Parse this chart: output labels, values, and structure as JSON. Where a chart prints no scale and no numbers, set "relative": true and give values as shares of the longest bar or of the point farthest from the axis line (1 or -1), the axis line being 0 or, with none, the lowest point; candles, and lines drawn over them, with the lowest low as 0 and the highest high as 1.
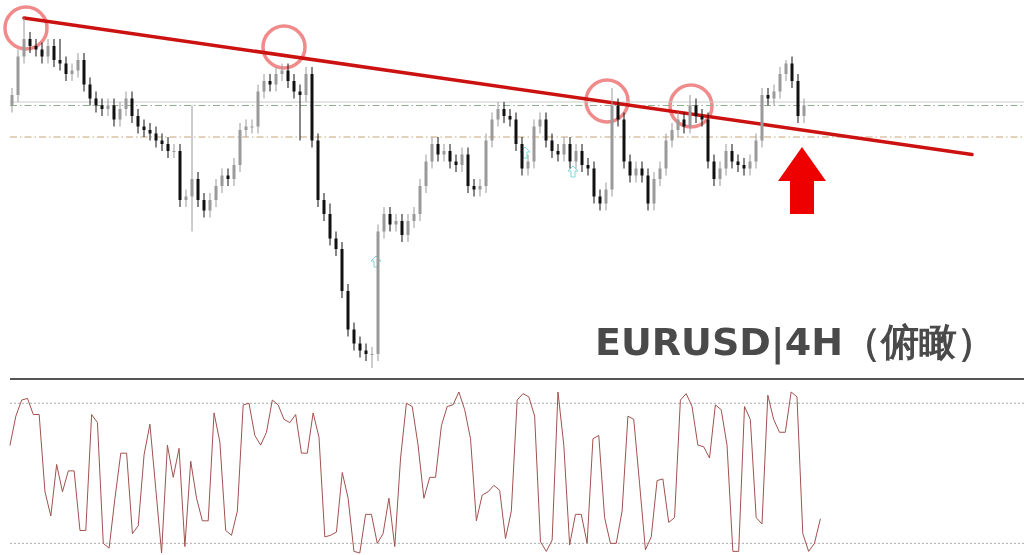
{
  "chart_data": [
    {
      "type": "candlestick",
      "relative": true,
      "title": "EURUSD|4H（俯瞰）",
      "tick_labels": false,
      "categories": [
        null,
        null,
        null,
        null,
        null,
        null,
        null,
        null,
        null,
        null,
        null,
        null,
        null,
        null,
        null,
        null,
        null,
        null,
        null,
        null,
        null,
        null,
        null,
        null,
        null,
        null,
        null,
        null,
        null,
        null,
        null,
        null,
        null,
        null,
        null,
        null,
        null,
        null,
        null,
        null,
        null,
        null,
        null,
        null,
        null,
        null,
        null,
        null,
        null,
        null,
        null,
        null,
        null,
        null,
        null,
        null,
        null,
        null,
        null,
        null,
        null,
        null,
        null,
        null,
        null,
        null,
        null,
        null,
        null,
        null,
        null,
        null,
        null,
        null,
        null,
        null,
        null,
        null,
        null,
        null,
        null,
        null,
        null,
        null,
        null,
        null,
        null,
        null,
        null,
        null,
        null,
        null,
        null,
        null,
        null,
        null,
        null,
        null,
        null,
        null,
        null,
        null,
        null,
        null,
        null,
        null,
        null,
        null,
        null,
        null,
        null,
        null,
        null,
        null,
        null,
        null,
        null,
        null,
        null,
        null,
        null,
        null,
        null,
        null,
        null,
        null,
        null,
        null,
        null,
        null,
        null,
        null,
        null,
        null,
        null,
        null,
        null,
        null,
        null,
        null,
        null,
        null,
        null,
        null,
        null,
        null,
        null,
        null,
        null,
        null,
        null,
        null,
        null,
        null,
        null,
        null,
        null,
        null,
        null,
        null,
        null,
        null,
        null,
        null,
        null,
        null,
        null,
        null
      ],
      "ohlc": [
        [
          0.75,
          0.8,
          0.73,
          0.78
        ],
        [
          0.78,
          0.91,
          0.76,
          0.89
        ],
        [
          0.89,
          1.0,
          0.87,
          0.94
        ],
        [
          0.94,
          0.96,
          0.9,
          0.92
        ],
        [
          0.92,
          0.94,
          0.89,
          0.91
        ],
        [
          0.91,
          0.93,
          0.87,
          0.89
        ],
        [
          0.89,
          0.94,
          0.87,
          0.92
        ],
        [
          0.92,
          0.94,
          0.86,
          0.88
        ],
        [
          0.88,
          0.94,
          0.85,
          0.87
        ],
        [
          0.87,
          0.89,
          0.82,
          0.84
        ],
        [
          0.84,
          0.87,
          0.82,
          0.85
        ],
        [
          0.85,
          0.9,
          0.83,
          0.88
        ],
        [
          0.88,
          0.9,
          0.79,
          0.81
        ],
        [
          0.81,
          0.83,
          0.75,
          0.77
        ],
        [
          0.77,
          0.79,
          0.73,
          0.75
        ],
        [
          0.75,
          0.77,
          0.72,
          0.74
        ],
        [
          0.74,
          0.77,
          0.72,
          0.75
        ],
        [
          0.75,
          0.77,
          0.69,
          0.71
        ],
        [
          0.71,
          0.76,
          0.69,
          0.74
        ],
        [
          0.74,
          0.79,
          0.72,
          0.77
        ],
        [
          0.77,
          0.79,
          0.7,
          0.72
        ],
        [
          0.72,
          0.74,
          0.67,
          0.69
        ],
        [
          0.69,
          0.71,
          0.66,
          0.68
        ],
        [
          0.68,
          0.7,
          0.65,
          0.67
        ],
        [
          0.67,
          0.69,
          0.63,
          0.65
        ],
        [
          0.65,
          0.67,
          0.62,
          0.64
        ],
        [
          0.64,
          0.66,
          0.6,
          0.62
        ],
        [
          0.62,
          0.64,
          0.6,
          0.62
        ],
        [
          0.62,
          0.64,
          0.46,
          0.48
        ],
        [
          0.48,
          0.51,
          0.46,
          0.49
        ],
        [
          0.49,
          0.75,
          0.39,
          0.54
        ],
        [
          0.54,
          0.56,
          0.46,
          0.48
        ],
        [
          0.48,
          0.5,
          0.43,
          0.45
        ],
        [
          0.45,
          0.5,
          0.43,
          0.48
        ],
        [
          0.48,
          0.54,
          0.46,
          0.52
        ],
        [
          0.52,
          0.57,
          0.5,
          0.55
        ],
        [
          0.55,
          0.57,
          0.52,
          0.54
        ],
        [
          0.54,
          0.6,
          0.52,
          0.58
        ],
        [
          0.58,
          0.7,
          0.56,
          0.68
        ],
        [
          0.68,
          0.71,
          0.66,
          0.69
        ],
        [
          0.69,
          0.71,
          0.67,
          0.69
        ],
        [
          0.69,
          0.81,
          0.67,
          0.79
        ],
        [
          0.79,
          0.84,
          0.77,
          0.82
        ],
        [
          0.82,
          0.84,
          0.79,
          0.81
        ],
        [
          0.81,
          0.86,
          0.79,
          0.84
        ],
        [
          0.84,
          0.87,
          0.82,
          0.85
        ],
        [
          0.85,
          0.87,
          0.8,
          0.82
        ],
        [
          0.82,
          0.84,
          0.77,
          0.79
        ],
        [
          0.79,
          0.81,
          0.65,
          0.78
        ],
        [
          0.78,
          0.86,
          0.76,
          0.84
        ],
        [
          0.84,
          0.86,
          0.63,
          0.65
        ],
        [
          0.65,
          0.67,
          0.46,
          0.48
        ],
        [
          0.48,
          0.5,
          0.42,
          0.44
        ],
        [
          0.44,
          0.47,
          0.35,
          0.37
        ],
        [
          0.37,
          0.39,
          0.32,
          0.34
        ],
        [
          0.34,
          0.36,
          0.2,
          0.22
        ],
        [
          0.22,
          0.24,
          0.09,
          0.11
        ],
        [
          0.11,
          0.13,
          0.05,
          0.07
        ],
        [
          0.07,
          0.09,
          0.03,
          0.05
        ],
        [
          0.05,
          0.07,
          0.02,
          0.04
        ],
        [
          0.04,
          0.06,
          0,
          0.04
        ],
        [
          0.04,
          0.41,
          0.02,
          0.39
        ],
        [
          0.39,
          0.46,
          0.37,
          0.44
        ],
        [
          0.44,
          0.46,
          0.39,
          0.41
        ],
        [
          0.41,
          0.44,
          0.39,
          0.42
        ],
        [
          0.42,
          0.44,
          0.36,
          0.38
        ],
        [
          0.38,
          0.44,
          0.36,
          0.42
        ],
        [
          0.42,
          0.46,
          0.4,
          0.44
        ],
        [
          0.44,
          0.54,
          0.42,
          0.52
        ],
        [
          0.52,
          0.61,
          0.5,
          0.59
        ],
        [
          0.59,
          0.66,
          0.57,
          0.64
        ],
        [
          0.64,
          0.66,
          0.59,
          0.61
        ],
        [
          0.61,
          0.64,
          0.59,
          0.62
        ],
        [
          0.62,
          0.64,
          0.57,
          0.59
        ],
        [
          0.59,
          0.61,
          0.56,
          0.58
        ],
        [
          0.58,
          0.63,
          0.56,
          0.61
        ],
        [
          0.61,
          0.63,
          0.5,
          0.52
        ],
        [
          0.52,
          0.54,
          0.49,
          0.51
        ],
        [
          0.51,
          0.54,
          0.49,
          0.52
        ],
        [
          0.52,
          0.67,
          0.5,
          0.65
        ],
        [
          0.65,
          0.73,
          0.63,
          0.71
        ],
        [
          0.71,
          0.76,
          0.69,
          0.74
        ],
        [
          0.74,
          0.76,
          0.7,
          0.72
        ],
        [
          0.72,
          0.74,
          0.69,
          0.71
        ],
        [
          0.71,
          0.73,
          0.62,
          0.64
        ],
        [
          0.64,
          0.66,
          0.55,
          0.57
        ],
        [
          0.57,
          0.61,
          0.55,
          0.59
        ],
        [
          0.59,
          0.71,
          0.57,
          0.69
        ],
        [
          0.69,
          0.73,
          0.67,
          0.71
        ],
        [
          0.71,
          0.73,
          0.63,
          0.65
        ],
        [
          0.65,
          0.67,
          0.6,
          0.62
        ],
        [
          0.62,
          0.64,
          0.59,
          0.61
        ],
        [
          0.61,
          0.66,
          0.59,
          0.64
        ],
        [
          0.64,
          0.66,
          0.57,
          0.59
        ],
        [
          0.59,
          0.64,
          0.57,
          0.62
        ],
        [
          0.62,
          0.64,
          0.56,
          0.58
        ],
        [
          0.58,
          0.6,
          0.55,
          0.57
        ],
        [
          0.57,
          0.59,
          0.47,
          0.49
        ],
        [
          0.49,
          0.51,
          0.45,
          0.47
        ],
        [
          0.47,
          0.53,
          0.45,
          0.51
        ],
        [
          0.51,
          0.8,
          0.49,
          0.75
        ],
        [
          0.75,
          0.77,
          0.69,
          0.71
        ],
        [
          0.71,
          0.73,
          0.57,
          0.59
        ],
        [
          0.59,
          0.61,
          0.53,
          0.55
        ],
        [
          0.55,
          0.59,
          0.53,
          0.57
        ],
        [
          0.57,
          0.59,
          0.53,
          0.55
        ],
        [
          0.55,
          0.57,
          0.45,
          0.47
        ],
        [
          0.47,
          0.56,
          0.45,
          0.54
        ],
        [
          0.54,
          0.59,
          0.52,
          0.57
        ],
        [
          0.57,
          0.67,
          0.55,
          0.65
        ],
        [
          0.65,
          0.7,
          0.63,
          0.68
        ],
        [
          0.68,
          0.73,
          0.66,
          0.71
        ],
        [
          0.71,
          0.73,
          0.67,
          0.69
        ],
        [
          0.69,
          0.78,
          0.67,
          0.75
        ],
        [
          0.75,
          0.77,
          0.7,
          0.72
        ],
        [
          0.72,
          0.74,
          0.69,
          0.71
        ],
        [
          0.71,
          0.73,
          0.57,
          0.59
        ],
        [
          0.59,
          0.61,
          0.52,
          0.54
        ],
        [
          0.54,
          0.59,
          0.52,
          0.57
        ],
        [
          0.57,
          0.64,
          0.55,
          0.62
        ],
        [
          0.62,
          0.64,
          0.57,
          0.59
        ],
        [
          0.59,
          0.61,
          0.56,
          0.58
        ],
        [
          0.58,
          0.6,
          0.55,
          0.57
        ],
        [
          0.57,
          0.61,
          0.55,
          0.59
        ],
        [
          0.59,
          0.67,
          0.57,
          0.65
        ],
        [
          0.65,
          0.8,
          0.63,
          0.78
        ],
        [
          0.78,
          0.8,
          0.75,
          0.77
        ],
        [
          0.77,
          0.81,
          0.75,
          0.79
        ],
        [
          0.79,
          0.86,
          0.77,
          0.84
        ],
        [
          0.84,
          0.88,
          0.82,
          0.87
        ],
        [
          0.87,
          0.89,
          0.8,
          0.82
        ],
        [
          0.82,
          0.84,
          0.7,
          0.72
        ],
        [
          0.72,
          0.77,
          0.7,
          0.75
        ],
        null,
        null,
        null,
        null,
        null,
        null,
        null,
        null,
        null,
        null,
        null,
        null,
        null,
        null,
        null,
        null,
        null,
        null,
        null,
        null,
        null,
        null,
        null,
        null,
        null,
        null,
        null,
        null,
        null,
        null,
        null,
        null,
        null,
        null,
        null
      ],
      "series": [
        {
          "type": "line",
          "color": "#cc1111",
          "values": [
            null,
            null,
            1.0,
            null,
            null,
            null,
            null,
            null,
            null,
            null,
            null,
            null,
            null,
            null,
            null,
            null,
            null,
            null,
            null,
            null,
            null,
            null,
            null,
            null,
            null,
            null,
            null,
            null,
            null,
            null,
            null,
            null,
            null,
            null,
            null,
            null,
            null,
            null,
            null,
            null,
            null,
            null,
            null,
            null,
            null,
            null,
            null,
            null,
            null,
            null,
            null,
            null,
            null,
            null,
            null,
            null,
            null,
            null,
            null,
            null,
            null,
            null,
            null,
            null,
            null,
            null,
            null,
            null,
            null,
            null,
            null,
            null,
            null,
            null,
            null,
            null,
            null,
            null,
            null,
            null,
            null,
            null,
            null,
            null,
            null,
            null,
            null,
            null,
            null,
            null,
            null,
            null,
            null,
            null,
            null,
            null,
            null,
            null,
            null,
            null,
            null,
            null,
            null,
            null,
            null,
            null,
            null,
            null,
            null,
            null,
            null,
            null,
            null,
            null,
            null,
            null,
            null,
            null,
            null,
            null,
            null,
            null,
            null,
            null,
            null,
            null,
            null,
            null,
            null,
            null,
            null,
            null,
            null,
            null,
            null,
            null,
            null,
            null,
            null,
            null,
            null,
            null,
            null,
            null,
            null,
            null,
            null,
            null,
            null,
            null,
            null,
            null,
            null,
            null,
            null,
            null,
            null,
            null,
            null,
            null,
            0.61,
            null,
            null,
            null,
            null,
            null,
            null,
            null
          ]
        }
      ],
      "ref_lines": [
        {
          "axis": "y",
          "value": 0.76,
          "color": "#c8ccc8",
          "line_style": "solid"
        },
        {
          "axis": "y",
          "value": 0.75,
          "color": "#8fb08f",
          "line_style": "dashed"
        },
        {
          "axis": "y",
          "value": 0.66,
          "color": "#c8a47a",
          "line_style": "dashed"
        }
      ]
    },
    {
      "type": "line",
      "relative": true,
      "tick_labels": false,
      "color": "#a0524f",
      "categories": [
        null,
        null,
        null,
        null,
        null,
        null,
        null,
        null,
        null,
        null,
        null,
        null,
        null,
        null,
        null,
        null,
        null,
        null,
        null,
        null,
        null,
        null,
        null,
        null,
        null,
        null,
        null,
        null,
        null,
        null,
        null,
        null,
        null,
        null,
        null,
        null,
        null,
        null,
        null,
        null,
        null,
        null,
        null,
        null,
        null,
        null,
        null,
        null,
        null,
        null,
        null,
        null,
        null,
        null,
        null,
        null,
        null,
        null,
        null,
        null,
        null,
        null,
        null,
        null,
        null,
        null,
        null,
        null,
        null,
        null,
        null,
        null,
        null,
        null,
        null,
        null,
        null,
        null,
        null,
        null,
        null,
        null,
        null,
        null,
        null,
        null,
        null,
        null,
        null,
        null,
        null,
        null,
        null,
        null,
        null,
        null,
        null,
        null,
        null,
        null,
        null,
        null,
        null,
        null,
        null,
        null,
        null,
        null,
        null,
        null,
        null,
        null,
        null,
        null,
        null,
        null,
        null,
        null,
        null,
        null,
        null,
        null,
        null,
        null,
        null,
        null,
        null,
        null,
        null,
        null,
        null,
        null,
        null,
        null,
        null,
        null,
        null,
        null,
        null,
        null
      ],
      "values": [
        0.67,
        0.85,
        0.95,
        0.96,
        0.86,
        0.86,
        0.38,
        0.23,
        0.55,
        0.38,
        0.51,
        0.51,
        0.14,
        0.14,
        0.86,
        0.81,
        0.06,
        0.03,
        0.34,
        0.62,
        0.62,
        0.12,
        0.17,
        0.61,
        0.8,
        0.4,
        0.0,
        0.67,
        0.47,
        0.65,
        0.04,
        0.57,
        0.34,
        0.2,
        0.2,
        0.87,
        0.69,
        0.14,
        0.11,
        0.26,
        0.92,
        0.93,
        0.73,
        0.67,
        0.75,
        0.95,
        0.92,
        0.83,
        0.81,
        0.86,
        0.62,
        0.62,
        0.87,
        0.72,
        0.1,
        0.11,
        0.13,
        0.5,
        0.34,
        0.01,
        0.0,
        0.24,
        0.24,
        0.06,
        0.12,
        0.34,
        0.04,
        0.59,
        0.93,
        0.91,
        0.67,
        0.34,
        0.47,
        0.47,
        0.79,
        0.91,
        0.92,
        1.0,
        0.89,
        0.71,
        0.2,
        0.36,
        0.38,
        0.42,
        0.39,
        0.09,
        0.26,
        0.95,
        0.99,
        0.97,
        0.85,
        0.07,
        0.01,
        0.08,
        1.0,
        0.67,
        0.05,
        0.24,
        0.24,
        0.06,
        0.71,
        0.73,
        0.22,
        0.06,
        0.06,
        0.26,
        0.85,
        0.83,
        0.43,
        0.02,
        0.1,
        0.45,
        0.46,
        0.19,
        0.22,
        0.95,
        0.99,
        0.91,
        0.67,
        0.66,
        0.59,
        0.92,
        0.89,
        0.67,
        0.01,
        0.01,
        0.91,
        0.83,
        0.22,
        0.18,
        0.98,
        0.83,
        0.75,
        0.75,
        1.0,
        0.97,
        0.12,
        0.01,
        0.06,
        0.21
      ],
      "ref_lines": [
        {
          "axis": "y",
          "value": 0.93,
          "color": "#aaaaaa",
          "line_style": "dotted"
        },
        {
          "axis": "y",
          "value": 0.06,
          "color": "#aaaaaa",
          "line_style": "dotted"
        }
      ]
    }
  ]
}
